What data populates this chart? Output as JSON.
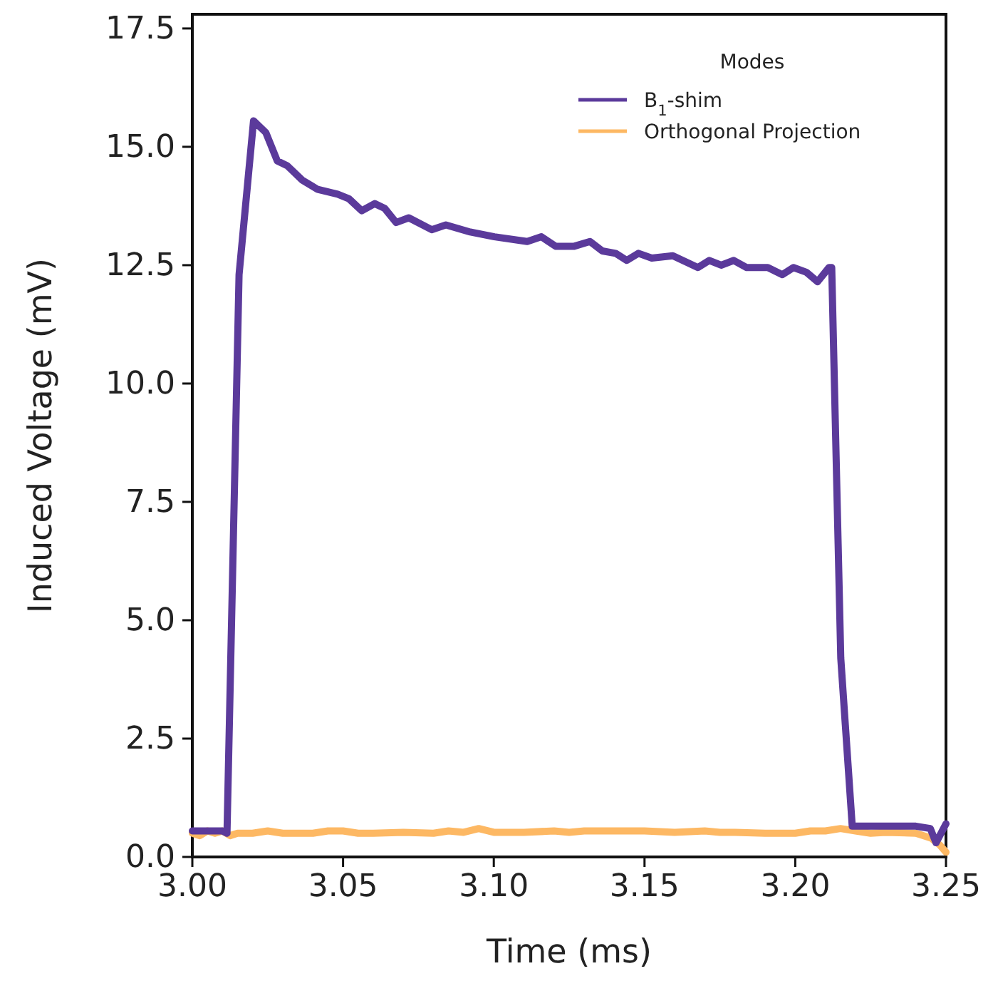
{
  "chart_data": {
    "type": "line",
    "xlabel": "Time (ms)",
    "ylabel": "Induced Voltage (mV)",
    "legend_title": "Modes",
    "legend": "top right",
    "grid": false,
    "line_style": "solid",
    "marker": "none",
    "xlim": [
      3.0,
      3.25
    ],
    "ylim": [
      0,
      17.8
    ],
    "xticks": [
      {
        "value": 3.0,
        "label": "3.00"
      },
      {
        "value": 3.05,
        "label": "3.05"
      },
      {
        "value": 3.1,
        "label": "3.10"
      },
      {
        "value": 3.15,
        "label": "3.15"
      },
      {
        "value": 3.2,
        "label": "3.20"
      },
      {
        "value": 3.25,
        "label": "3.25"
      }
    ],
    "yticks": [
      {
        "value": 0,
        "label": "0.0"
      },
      2.5,
      {
        "value": 5,
        "label": "5.0"
      },
      7.5,
      {
        "value": 10,
        "label": "10.0"
      },
      12.5,
      {
        "value": 15,
        "label": "15.0"
      },
      17.5
    ],
    "series": [
      {
        "name": "B$_{1}$-shim",
        "color": "#5b3a9b",
        "x": [
          3.0,
          3.005,
          3.01,
          3.0115,
          3.0155,
          3.0203,
          3.0244,
          3.0282,
          3.0315,
          3.0364,
          3.0416,
          3.0482,
          3.052,
          3.0562,
          3.0605,
          3.0638,
          3.0676,
          3.0718,
          3.0794,
          3.0841,
          3.0922,
          3.1002,
          3.1111,
          3.1158,
          3.1205,
          3.1267,
          3.1319,
          3.136,
          3.1404,
          3.1441,
          3.148,
          3.1524,
          3.1594,
          3.1677,
          3.1715,
          3.1754,
          3.1796,
          3.1839,
          3.1909,
          3.1957,
          3.1994,
          3.2037,
          3.2074,
          3.2112,
          3.2121,
          3.2151,
          3.2189,
          3.23,
          3.24,
          3.2448,
          3.2467,
          3.25
        ],
        "values": [
          0.55,
          0.55,
          0.55,
          0.5,
          12.3,
          15.55,
          15.3,
          14.7,
          14.6,
          14.3,
          14.1,
          14.0,
          13.9,
          13.65,
          13.8,
          13.7,
          13.4,
          13.5,
          13.25,
          13.35,
          13.2,
          13.1,
          13.0,
          13.1,
          12.9,
          12.9,
          13.0,
          12.8,
          12.75,
          12.6,
          12.75,
          12.65,
          12.7,
          12.45,
          12.6,
          12.5,
          12.6,
          12.45,
          12.45,
          12.3,
          12.45,
          12.35,
          12.15,
          12.45,
          12.45,
          4.2,
          0.65,
          0.65,
          0.65,
          0.6,
          0.3,
          0.7
        ]
      },
      {
        "name": "Orthogonal Projection",
        "color": "#fdb863",
        "x": [
          3.0,
          3.0025,
          3.005,
          3.0075,
          3.01,
          3.0125,
          3.015,
          3.02,
          3.025,
          3.03,
          3.04,
          3.045,
          3.05,
          3.055,
          3.06,
          3.07,
          3.08,
          3.085,
          3.09,
          3.095,
          3.1,
          3.11,
          3.12,
          3.125,
          3.13,
          3.14,
          3.15,
          3.16,
          3.17,
          3.175,
          3.18,
          3.19,
          3.2,
          3.205,
          3.21,
          3.215,
          3.22,
          3.225,
          3.23,
          3.24,
          3.245,
          3.248,
          3.25
        ],
        "values": [
          0.5,
          0.45,
          0.55,
          0.5,
          0.55,
          0.45,
          0.5,
          0.5,
          0.55,
          0.5,
          0.5,
          0.55,
          0.55,
          0.5,
          0.5,
          0.52,
          0.5,
          0.55,
          0.52,
          0.6,
          0.52,
          0.52,
          0.55,
          0.52,
          0.55,
          0.55,
          0.55,
          0.52,
          0.55,
          0.52,
          0.52,
          0.5,
          0.5,
          0.55,
          0.55,
          0.6,
          0.55,
          0.5,
          0.52,
          0.5,
          0.4,
          0.25,
          0.1
        ]
      }
    ]
  }
}
